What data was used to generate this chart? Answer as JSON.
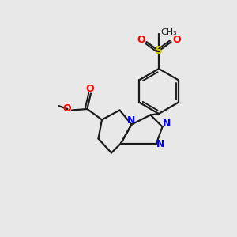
{
  "background_color": "#e8e8e8",
  "bond_color": "#1a1a1a",
  "nitrogen_color": "#0000ff",
  "oxygen_color": "#ff0000",
  "sulfur_color": "#cccc00",
  "line_width": 1.6,
  "figsize": [
    3.0,
    3.0
  ],
  "dpi": 100,
  "xlim": [
    0,
    10
  ],
  "ylim": [
    0,
    10
  ]
}
